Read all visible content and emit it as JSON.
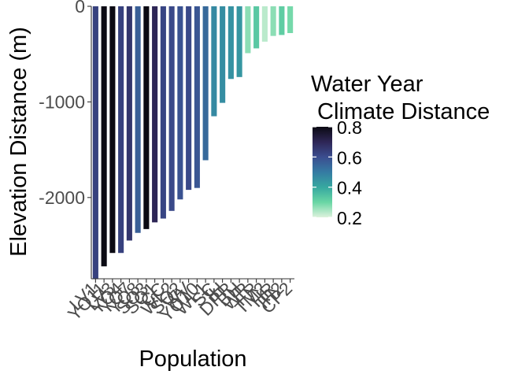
{
  "chart_data": {
    "type": "bar",
    "xlabel": "Population",
    "ylabel": "Elevation Distance (m)",
    "ylim": [
      -2850,
      0
    ],
    "yticks": [
      0,
      -1000,
      -2000
    ],
    "ytick_labels": [
      "0",
      "-1000",
      "-2000"
    ],
    "grid": false,
    "categories": [
      "LV1",
      "YO11",
      "LV3",
      "YO4",
      "YO7",
      "YO8",
      "SQ3",
      "SQ1",
      "CC",
      "WL2",
      "SQ2",
      "WV",
      "YO10",
      "WL1",
      "SC",
      "IH",
      "DPR",
      "BH",
      "WR",
      "FR",
      "TM2",
      "HR",
      "IH2",
      "CP2"
    ],
    "values": [
      -2850,
      -2720,
      -2580,
      -2580,
      -2450,
      -2370,
      -2330,
      -2260,
      -2220,
      -2140,
      -2020,
      -1920,
      -1900,
      -1610,
      -1150,
      -1010,
      -760,
      -740,
      -490,
      -440,
      -370,
      -310,
      -300,
      -280
    ],
    "climate_distance": [
      0.63,
      0.83,
      0.83,
      0.63,
      0.66,
      0.56,
      0.82,
      0.7,
      0.62,
      0.61,
      0.59,
      0.61,
      0.58,
      0.54,
      0.47,
      0.46,
      0.45,
      0.44,
      0.27,
      0.33,
      0.23,
      0.27,
      0.32,
      0.29
    ],
    "legend": {
      "title_line1": "Water Year",
      "title_line2": " Climate Distance",
      "position": "right",
      "range": [
        0.2,
        0.8
      ],
      "ticks": [
        0.8,
        0.6,
        0.4,
        0.2
      ],
      "tick_labels": [
        "0.8",
        "0.6",
        "0.4",
        "0.2"
      ],
      "palette": [
        "#ddf2dd",
        "#69d6a4",
        "#36a8a0",
        "#357ba3",
        "#3b4d8f",
        "#2e2656",
        "#0b0a13"
      ]
    }
  }
}
